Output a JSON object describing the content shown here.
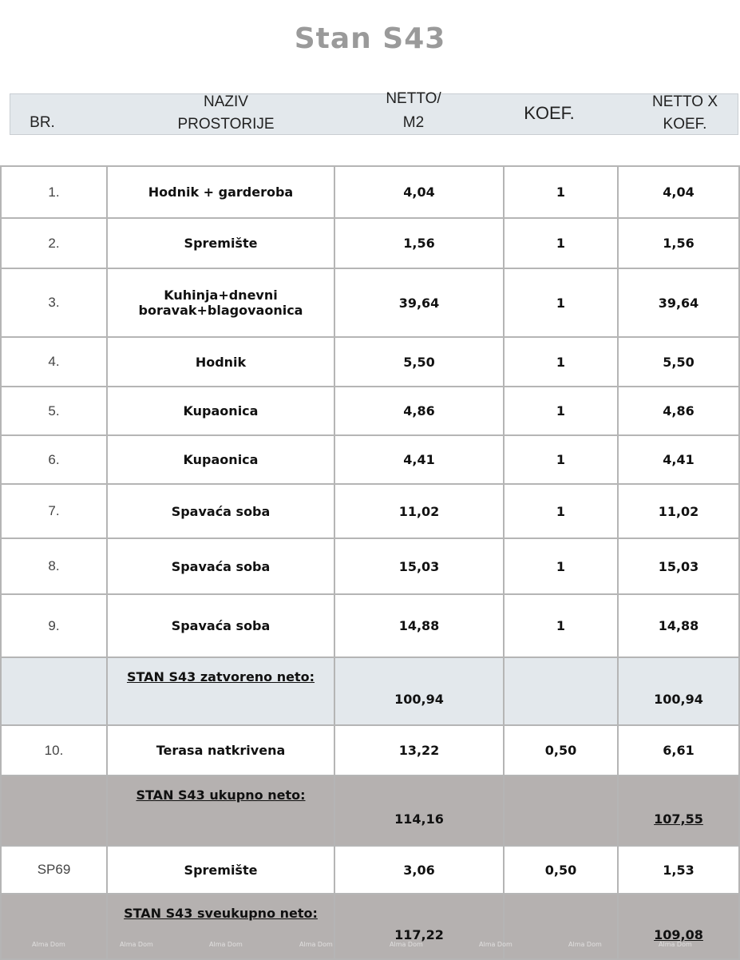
{
  "title": "Stan S43",
  "header": {
    "br": "BR.",
    "naziv_1": "NAZIV",
    "naziv_2": "PROSTORIJE",
    "netto_1": "NETTO/",
    "netto_2": "M2",
    "koef": "KOEF.",
    "nk_1": "NETTO X",
    "nk_2": "KOEF."
  },
  "rows": [
    {
      "no": "1.",
      "name": "Hodnik + garderoba",
      "netto": "4,04",
      "koef": "1",
      "nk": "4,04"
    },
    {
      "no": "2.",
      "name": "Spremište",
      "netto": "1,56",
      "koef": "1",
      "nk": "1,56"
    },
    {
      "no": "3.",
      "name": "Kuhinja+dnevni boravak+blagovaonica",
      "netto": "39,64",
      "koef": "1",
      "nk": "39,64"
    },
    {
      "no": "4.",
      "name": "Hodnik",
      "netto": "5,50",
      "koef": "1",
      "nk": "5,50"
    },
    {
      "no": "5.",
      "name": "Kupaonica",
      "netto": "4,86",
      "koef": "1",
      "nk": "4,86"
    },
    {
      "no": "6.",
      "name": "Kupaonica",
      "netto": "4,41",
      "koef": "1",
      "nk": "4,41"
    },
    {
      "no": "7.",
      "name": "Spavaća soba",
      "netto": "11,02",
      "koef": "1",
      "nk": "11,02"
    },
    {
      "no": "8.",
      "name": "Spavaća soba",
      "netto": "15,03",
      "koef": "1",
      "nk": "15,03"
    },
    {
      "no": "9.",
      "name": "Spavaća soba",
      "netto": "14,88",
      "koef": "1",
      "nk": "14,88"
    }
  ],
  "zatvoreno": {
    "label": "STAN S43 zatvoreno neto:",
    "netto": "100,94",
    "nk": "100,94"
  },
  "terasa": {
    "no": "10.",
    "name": "Terasa natkrivena",
    "netto": "13,22",
    "koef": "0,50",
    "nk": "6,61"
  },
  "ukupno": {
    "label": "STAN S43 ukupno neto:",
    "netto": "114,16",
    "nk": "107,55"
  },
  "spremiste": {
    "no": "SP69",
    "name": "Spremište",
    "netto": "3,06",
    "koef": "0,50",
    "nk": "1,53"
  },
  "sveukupno": {
    "label": "STAN S43 sveukupno neto:",
    "netto": "117,22",
    "nk": "109,08"
  },
  "watermark": "Alma Dom",
  "colors": {
    "header_bg": "#e3e8ec",
    "total_bg": "#b5b1b0",
    "title": "#9a9a9a"
  }
}
